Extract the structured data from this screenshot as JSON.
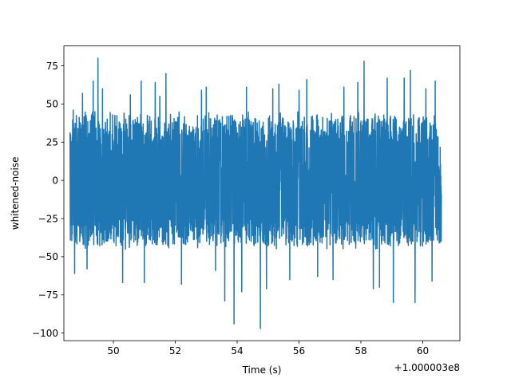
{
  "chart_data": {
    "type": "line",
    "title": "",
    "xlabel": "Time (s)",
    "ylabel": "whitened-noise",
    "x_offset_label": "+1.000003e8",
    "xlim": [
      48.4,
      61.2
    ],
    "ylim": [
      -105,
      88
    ],
    "xticks": [
      50,
      52,
      54,
      56,
      58,
      60
    ],
    "xtick_labels": [
      "50",
      "52",
      "54",
      "56",
      "58",
      "60"
    ],
    "yticks": [
      75,
      50,
      25,
      0,
      -25,
      -50,
      -75,
      -100
    ],
    "ytick_labels": [
      "75",
      "50",
      "25",
      "0",
      "−25",
      "−50",
      "−75",
      "−100"
    ],
    "grid": false,
    "series": [
      {
        "color": "#1f77b4",
        "sample_start": 48.6,
        "sample_end": 60.6,
        "typical_range": [
          -45,
          45
        ],
        "spikes": [
          {
            "x": 48.7,
            "y": 46
          },
          {
            "x": 48.75,
            "y": -61
          },
          {
            "x": 49.0,
            "y": 57
          },
          {
            "x": 49.15,
            "y": -58
          },
          {
            "x": 49.35,
            "y": 65
          },
          {
            "x": 49.5,
            "y": 80
          },
          {
            "x": 49.65,
            "y": 60
          },
          {
            "x": 50.3,
            "y": -67
          },
          {
            "x": 50.55,
            "y": 56
          },
          {
            "x": 50.9,
            "y": 65
          },
          {
            "x": 51.0,
            "y": -67
          },
          {
            "x": 51.35,
            "y": 64
          },
          {
            "x": 51.5,
            "y": 55
          },
          {
            "x": 51.7,
            "y": 70
          },
          {
            "x": 52.2,
            "y": -68
          },
          {
            "x": 52.85,
            "y": 59
          },
          {
            "x": 53.0,
            "y": 61
          },
          {
            "x": 53.3,
            "y": -59
          },
          {
            "x": 53.6,
            "y": -79
          },
          {
            "x": 53.9,
            "y": -94
          },
          {
            "x": 54.15,
            "y": -73
          },
          {
            "x": 54.3,
            "y": 61
          },
          {
            "x": 54.75,
            "y": -97
          },
          {
            "x": 54.95,
            "y": -71
          },
          {
            "x": 55.15,
            "y": 60
          },
          {
            "x": 55.35,
            "y": 63
          },
          {
            "x": 55.7,
            "y": -65
          },
          {
            "x": 56.0,
            "y": 59
          },
          {
            "x": 56.25,
            "y": 66
          },
          {
            "x": 56.6,
            "y": -63
          },
          {
            "x": 57.1,
            "y": -65
          },
          {
            "x": 57.45,
            "y": 61
          },
          {
            "x": 57.9,
            "y": 64
          },
          {
            "x": 58.1,
            "y": 78
          },
          {
            "x": 58.4,
            "y": -71
          },
          {
            "x": 58.6,
            "y": -70
          },
          {
            "x": 58.85,
            "y": 67
          },
          {
            "x": 59.05,
            "y": -80
          },
          {
            "x": 59.4,
            "y": 67
          },
          {
            "x": 59.6,
            "y": 72
          },
          {
            "x": 59.75,
            "y": -80
          },
          {
            "x": 60.1,
            "y": 60
          },
          {
            "x": 60.3,
            "y": -66
          },
          {
            "x": 60.4,
            "y": 65
          }
        ]
      }
    ]
  }
}
